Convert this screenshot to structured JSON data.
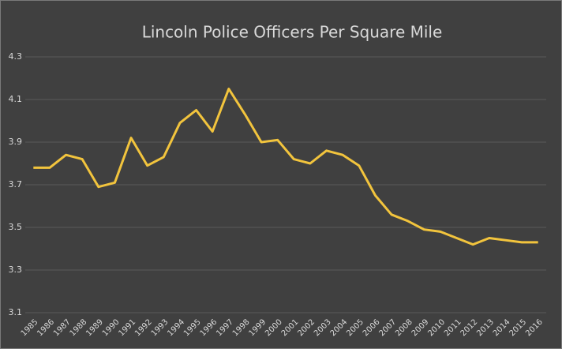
{
  "chart_data": {
    "type": "line",
    "title": "Lincoln Police Officers Per Square Mile",
    "categories": [
      "1985",
      "1986",
      "1987",
      "1988",
      "1989",
      "1990",
      "1991",
      "1992",
      "1993",
      "1994",
      "1995",
      "1996",
      "1997",
      "1998",
      "1999",
      "2000",
      "2001",
      "2002",
      "2003",
      "2004",
      "2005",
      "2006",
      "2007",
      "2008",
      "2009",
      "2010",
      "2011",
      "2012",
      "2013",
      "2014",
      "2015",
      "2016"
    ],
    "values": [
      3.78,
      3.78,
      3.84,
      3.82,
      3.69,
      3.71,
      3.92,
      3.79,
      3.83,
      3.99,
      4.05,
      3.95,
      4.15,
      4.03,
      3.9,
      3.91,
      3.82,
      3.8,
      3.86,
      3.84,
      3.79,
      3.65,
      3.56,
      3.53,
      3.49,
      3.48,
      3.45,
      3.42,
      3.45,
      3.44,
      3.43,
      3.43
    ],
    "color": "#f2c43d",
    "ylim": [
      3.1,
      4.3
    ],
    "yticks": [
      3.1,
      3.3,
      3.5,
      3.7,
      3.9,
      4.1,
      4.3
    ],
    "grid": true
  }
}
